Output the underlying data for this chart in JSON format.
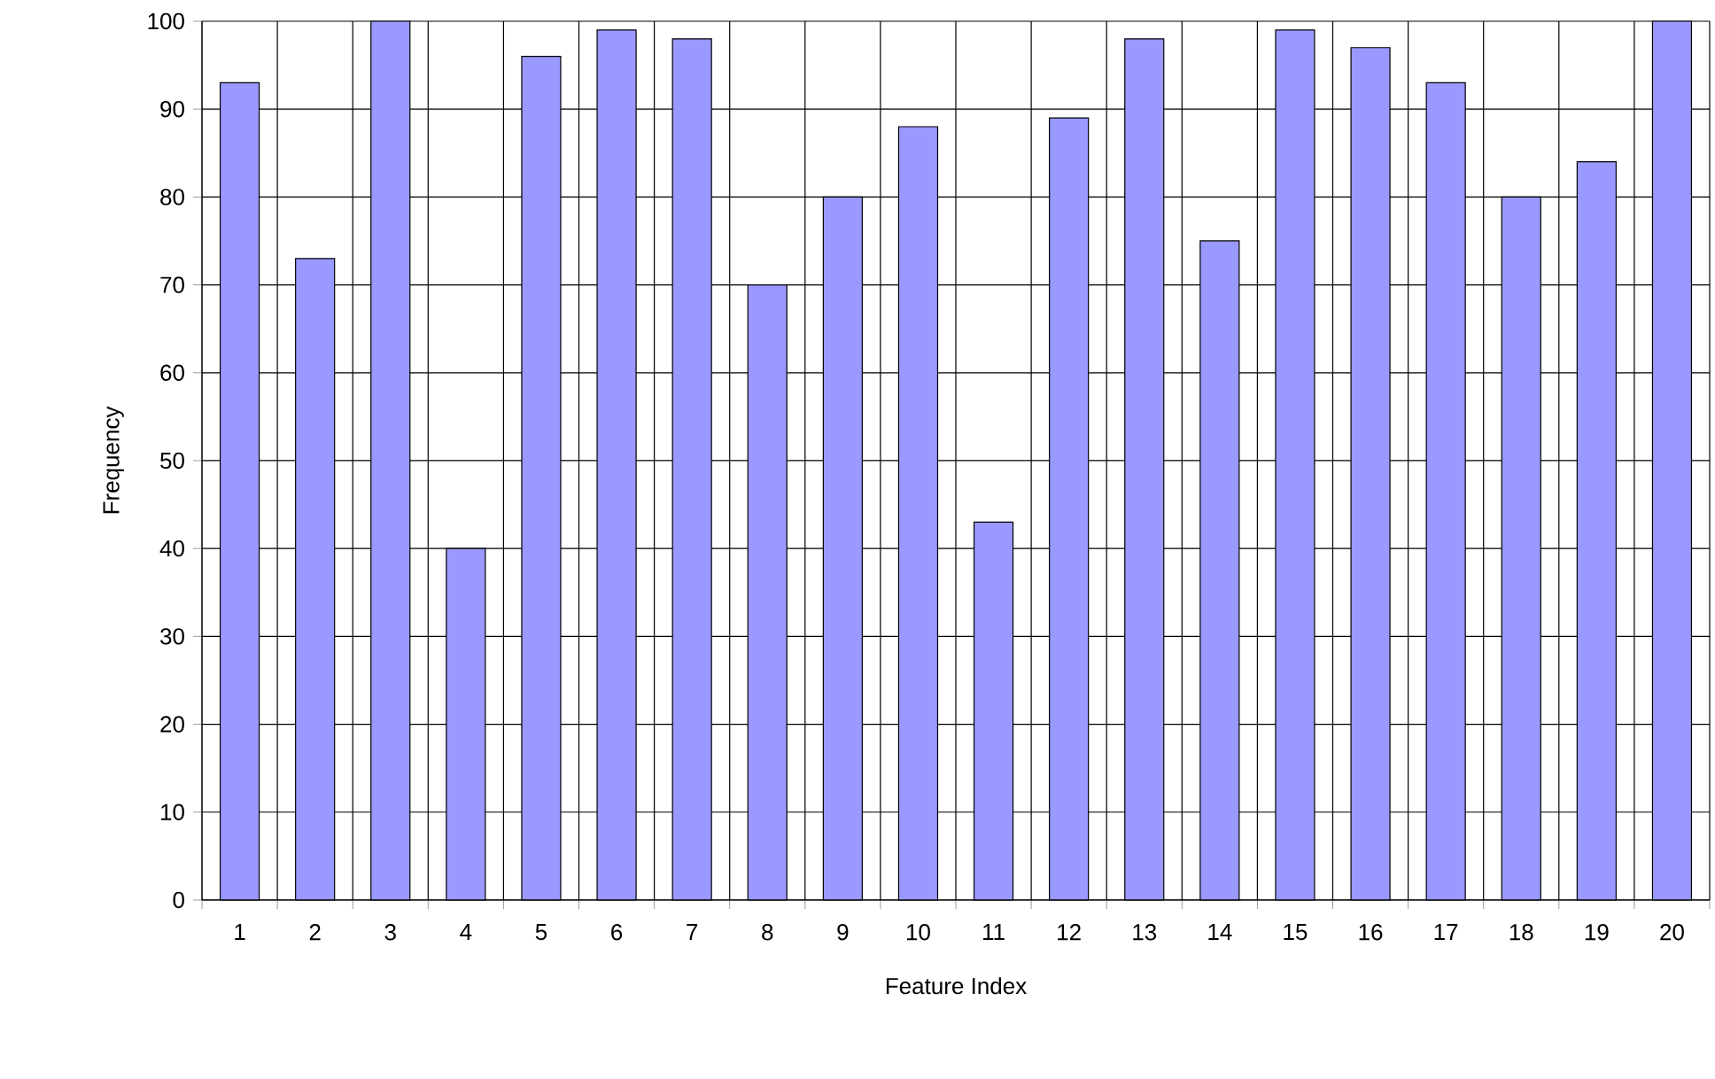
{
  "chart_data": {
    "type": "bar",
    "xlabel": "Feature Index",
    "ylabel": "Frequency",
    "categories": [
      "1",
      "2",
      "3",
      "4",
      "5",
      "6",
      "7",
      "8",
      "9",
      "10",
      "11",
      "12",
      "13",
      "14",
      "15",
      "16",
      "17",
      "18",
      "19",
      "20"
    ],
    "values": [
      93,
      73,
      100,
      40,
      96,
      99,
      98,
      70,
      80,
      88,
      43,
      89,
      98,
      75,
      99,
      97,
      93,
      80,
      84,
      100
    ],
    "color": "#9999ff",
    "ylim": [
      0,
      100
    ],
    "yticks": [
      0,
      10,
      20,
      30,
      40,
      50,
      60,
      70,
      80,
      90,
      100
    ],
    "grid": true
  }
}
